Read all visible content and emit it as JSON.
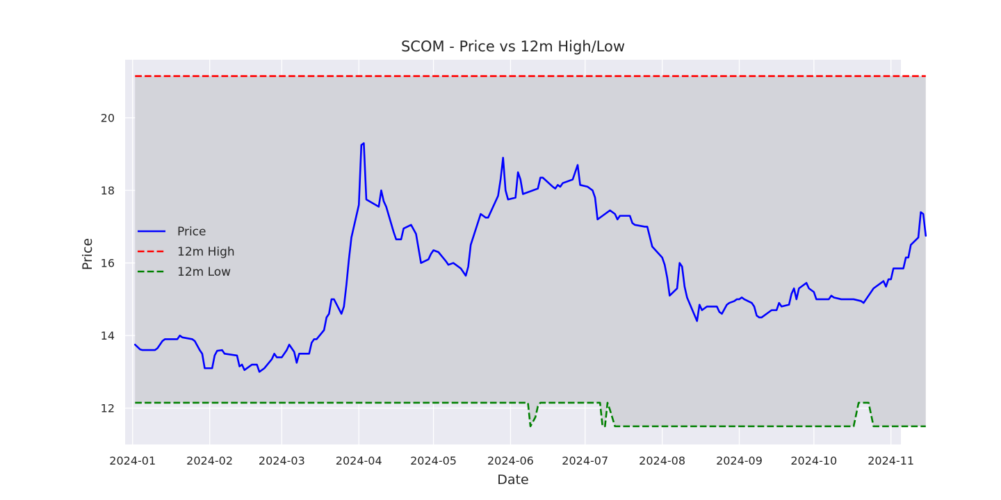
{
  "chart_data": {
    "type": "line",
    "title": "SCOM - Price vs 12m High/Low",
    "xlabel": "Date",
    "ylabel": "Price",
    "x_range": [
      "2023-12-29",
      "2024-11-05"
    ],
    "ylim": [
      11.0,
      21.6
    ],
    "x_ticks": [
      "2024-01",
      "2024-02",
      "2024-03",
      "2024-04",
      "2024-05",
      "2024-06",
      "2024-07",
      "2024-08",
      "2024-09",
      "2024-10",
      "2024-11"
    ],
    "y_ticks": [
      12,
      14,
      16,
      18,
      20
    ],
    "grid": true,
    "legend_position": "center-left",
    "colors": {
      "background": "#eaeaf2",
      "band": "#d3d4da",
      "grid": "#ffffff",
      "price": "#0000ff",
      "high": "#ff0000",
      "low": "#008000"
    },
    "series": [
      {
        "name": "Price",
        "style": "solid",
        "points": [
          [
            "2024-01-02",
            13.75
          ],
          [
            "2024-01-04",
            13.62
          ],
          [
            "2024-01-05",
            13.6
          ],
          [
            "2024-01-10",
            13.6
          ],
          [
            "2024-01-11",
            13.65
          ],
          [
            "2024-01-13",
            13.85
          ],
          [
            "2024-01-14",
            13.9
          ],
          [
            "2024-01-19",
            13.9
          ],
          [
            "2024-01-20",
            14.0
          ],
          [
            "2024-01-21",
            13.95
          ],
          [
            "2024-01-25",
            13.9
          ],
          [
            "2024-01-26",
            13.85
          ],
          [
            "2024-01-28",
            13.6
          ],
          [
            "2024-01-29",
            13.5
          ],
          [
            "2024-01-30",
            13.1
          ],
          [
            "2024-02-02",
            13.1
          ],
          [
            "2024-02-03",
            13.45
          ],
          [
            "2024-02-04",
            13.58
          ],
          [
            "2024-02-06",
            13.6
          ],
          [
            "2024-02-07",
            13.5
          ],
          [
            "2024-02-12",
            13.45
          ],
          [
            "2024-02-13",
            13.15
          ],
          [
            "2024-02-14",
            13.2
          ],
          [
            "2024-02-15",
            13.05
          ],
          [
            "2024-02-18",
            13.2
          ],
          [
            "2024-02-20",
            13.2
          ],
          [
            "2024-02-21",
            13.0
          ],
          [
            "2024-02-23",
            13.1
          ],
          [
            "2024-02-26",
            13.35
          ],
          [
            "2024-02-27",
            13.5
          ],
          [
            "2024-02-28",
            13.4
          ],
          [
            "2024-03-01",
            13.4
          ],
          [
            "2024-03-03",
            13.6
          ],
          [
            "2024-03-04",
            13.75
          ],
          [
            "2024-03-06",
            13.55
          ],
          [
            "2024-03-07",
            13.25
          ],
          [
            "2024-03-08",
            13.5
          ],
          [
            "2024-03-12",
            13.5
          ],
          [
            "2024-03-13",
            13.8
          ],
          [
            "2024-03-14",
            13.9
          ],
          [
            "2024-03-15",
            13.9
          ],
          [
            "2024-03-18",
            14.15
          ],
          [
            "2024-03-19",
            14.5
          ],
          [
            "2024-03-20",
            14.6
          ],
          [
            "2024-03-21",
            15.0
          ],
          [
            "2024-03-22",
            15.0
          ],
          [
            "2024-03-25",
            14.6
          ],
          [
            "2024-03-26",
            14.8
          ],
          [
            "2024-03-27",
            15.4
          ],
          [
            "2024-03-28",
            16.1
          ],
          [
            "2024-03-29",
            16.7
          ],
          [
            "2024-04-01",
            17.6
          ],
          [
            "2024-04-02",
            19.25
          ],
          [
            "2024-04-03",
            19.3
          ],
          [
            "2024-04-04",
            17.75
          ],
          [
            "2024-04-09",
            17.55
          ],
          [
            "2024-04-10",
            18.0
          ],
          [
            "2024-04-11",
            17.7
          ],
          [
            "2024-04-12",
            17.55
          ],
          [
            "2024-04-15",
            16.85
          ],
          [
            "2024-04-16",
            16.65
          ],
          [
            "2024-04-18",
            16.65
          ],
          [
            "2024-04-19",
            16.95
          ],
          [
            "2024-04-22",
            17.05
          ],
          [
            "2024-04-24",
            16.8
          ],
          [
            "2024-04-26",
            16.0
          ],
          [
            "2024-04-29",
            16.1
          ],
          [
            "2024-04-30",
            16.25
          ],
          [
            "2024-05-01",
            16.35
          ],
          [
            "2024-05-03",
            16.3
          ],
          [
            "2024-05-06",
            16.05
          ],
          [
            "2024-05-07",
            15.95
          ],
          [
            "2024-05-09",
            16.0
          ],
          [
            "2024-05-12",
            15.85
          ],
          [
            "2024-05-14",
            15.65
          ],
          [
            "2024-05-15",
            15.9
          ],
          [
            "2024-05-16",
            16.5
          ],
          [
            "2024-05-20",
            17.35
          ],
          [
            "2024-05-22",
            17.25
          ],
          [
            "2024-05-23",
            17.25
          ],
          [
            "2024-05-27",
            17.85
          ],
          [
            "2024-05-28",
            18.3
          ],
          [
            "2024-05-29",
            18.9
          ],
          [
            "2024-05-30",
            18.0
          ],
          [
            "2024-05-31",
            17.75
          ],
          [
            "2024-06-03",
            17.8
          ],
          [
            "2024-06-04",
            18.5
          ],
          [
            "2024-06-05",
            18.3
          ],
          [
            "2024-06-06",
            17.9
          ],
          [
            "2024-06-08",
            17.95
          ],
          [
            "2024-06-10",
            18.0
          ],
          [
            "2024-06-12",
            18.05
          ],
          [
            "2024-06-13",
            18.35
          ],
          [
            "2024-06-14",
            18.35
          ],
          [
            "2024-06-18",
            18.1
          ],
          [
            "2024-06-19",
            18.05
          ],
          [
            "2024-06-20",
            18.15
          ],
          [
            "2024-06-21",
            18.1
          ],
          [
            "2024-06-22",
            18.2
          ],
          [
            "2024-06-26",
            18.3
          ],
          [
            "2024-06-28",
            18.7
          ],
          [
            "2024-06-29",
            18.15
          ],
          [
            "2024-07-02",
            18.1
          ],
          [
            "2024-07-04",
            18.0
          ],
          [
            "2024-07-05",
            17.8
          ],
          [
            "2024-07-06",
            17.2
          ],
          [
            "2024-07-08",
            17.3
          ],
          [
            "2024-07-11",
            17.45
          ],
          [
            "2024-07-13",
            17.35
          ],
          [
            "2024-07-14",
            17.2
          ],
          [
            "2024-07-15",
            17.3
          ],
          [
            "2024-07-18",
            17.3
          ],
          [
            "2024-07-19",
            17.3
          ],
          [
            "2024-07-20",
            17.1
          ],
          [
            "2024-07-21",
            17.05
          ],
          [
            "2024-07-25",
            17.0
          ],
          [
            "2024-07-26",
            17.0
          ],
          [
            "2024-07-28",
            16.45
          ],
          [
            "2024-08-01",
            16.15
          ],
          [
            "2024-08-02",
            15.95
          ],
          [
            "2024-08-03",
            15.6
          ],
          [
            "2024-08-04",
            15.1
          ],
          [
            "2024-08-07",
            15.3
          ],
          [
            "2024-08-08",
            16.0
          ],
          [
            "2024-08-09",
            15.9
          ],
          [
            "2024-08-10",
            15.35
          ],
          [
            "2024-08-11",
            15.05
          ],
          [
            "2024-08-15",
            14.4
          ],
          [
            "2024-08-16",
            14.85
          ],
          [
            "2024-08-17",
            14.7
          ],
          [
            "2024-08-19",
            14.8
          ],
          [
            "2024-08-23",
            14.8
          ],
          [
            "2024-08-24",
            14.65
          ],
          [
            "2024-08-25",
            14.6
          ],
          [
            "2024-08-27",
            14.85
          ],
          [
            "2024-08-28",
            14.9
          ],
          [
            "2024-08-30",
            14.95
          ],
          [
            "2024-08-31",
            15.0
          ],
          [
            "2024-09-01",
            15.0
          ],
          [
            "2024-09-02",
            15.05
          ],
          [
            "2024-09-03",
            15.0
          ],
          [
            "2024-09-06",
            14.9
          ],
          [
            "2024-09-07",
            14.8
          ],
          [
            "2024-09-08",
            14.55
          ],
          [
            "2024-09-09",
            14.5
          ],
          [
            "2024-09-10",
            14.5
          ],
          [
            "2024-09-14",
            14.7
          ],
          [
            "2024-09-16",
            14.7
          ],
          [
            "2024-09-17",
            14.9
          ],
          [
            "2024-09-18",
            14.8
          ],
          [
            "2024-09-21",
            14.85
          ],
          [
            "2024-09-22",
            15.15
          ],
          [
            "2024-09-23",
            15.3
          ],
          [
            "2024-09-24",
            15.0
          ],
          [
            "2024-09-25",
            15.3
          ],
          [
            "2024-09-28",
            15.45
          ],
          [
            "2024-09-29",
            15.3
          ],
          [
            "2024-10-01",
            15.2
          ],
          [
            "2024-10-02",
            15.0
          ],
          [
            "2024-10-07",
            15.0
          ],
          [
            "2024-10-08",
            15.1
          ],
          [
            "2024-10-09",
            15.05
          ],
          [
            "2024-10-12",
            15.0
          ],
          [
            "2024-10-17",
            15.0
          ],
          [
            "2024-10-20",
            14.95
          ],
          [
            "2024-10-21",
            14.9
          ],
          [
            "2024-10-22",
            15.0
          ],
          [
            "2024-10-25",
            15.3
          ],
          [
            "2024-10-28",
            15.45
          ],
          [
            "2024-10-29",
            15.5
          ],
          [
            "2024-10-30",
            15.35
          ],
          [
            "2024-10-31",
            15.55
          ],
          [
            "2024-11-01",
            15.55
          ],
          [
            "2024-11-02",
            15.85
          ],
          [
            "2024-11-06",
            15.85
          ],
          [
            "2024-11-07",
            16.15
          ],
          [
            "2024-11-08",
            16.15
          ],
          [
            "2024-11-09",
            16.5
          ],
          [
            "2024-11-12",
            16.7
          ],
          [
            "2024-11-13",
            17.4
          ],
          [
            "2024-11-14",
            17.35
          ],
          [
            "2024-11-15",
            16.75
          ]
        ]
      },
      {
        "name": "12m High",
        "style": "dashed",
        "points": [
          [
            "2024-01-02",
            21.15
          ],
          [
            "2024-11-15",
            21.15
          ]
        ]
      },
      {
        "name": "12m Low",
        "style": "dashed",
        "points": [
          [
            "2024-01-02",
            12.15
          ],
          [
            "2024-06-08",
            12.15
          ],
          [
            "2024-06-09",
            11.5
          ],
          [
            "2024-06-11",
            11.75
          ],
          [
            "2024-06-12",
            12.05
          ],
          [
            "2024-06-13",
            12.15
          ],
          [
            "2024-07-07",
            12.15
          ],
          [
            "2024-07-08",
            11.5
          ],
          [
            "2024-07-09",
            11.5
          ],
          [
            "2024-07-10",
            12.15
          ],
          [
            "2024-07-11",
            11.95
          ],
          [
            "2024-07-13",
            11.5
          ],
          [
            "2024-10-17",
            11.5
          ],
          [
            "2024-10-19",
            12.15
          ],
          [
            "2024-10-23",
            12.15
          ],
          [
            "2024-10-25",
            11.5
          ],
          [
            "2024-11-15",
            11.5
          ]
        ]
      }
    ]
  }
}
